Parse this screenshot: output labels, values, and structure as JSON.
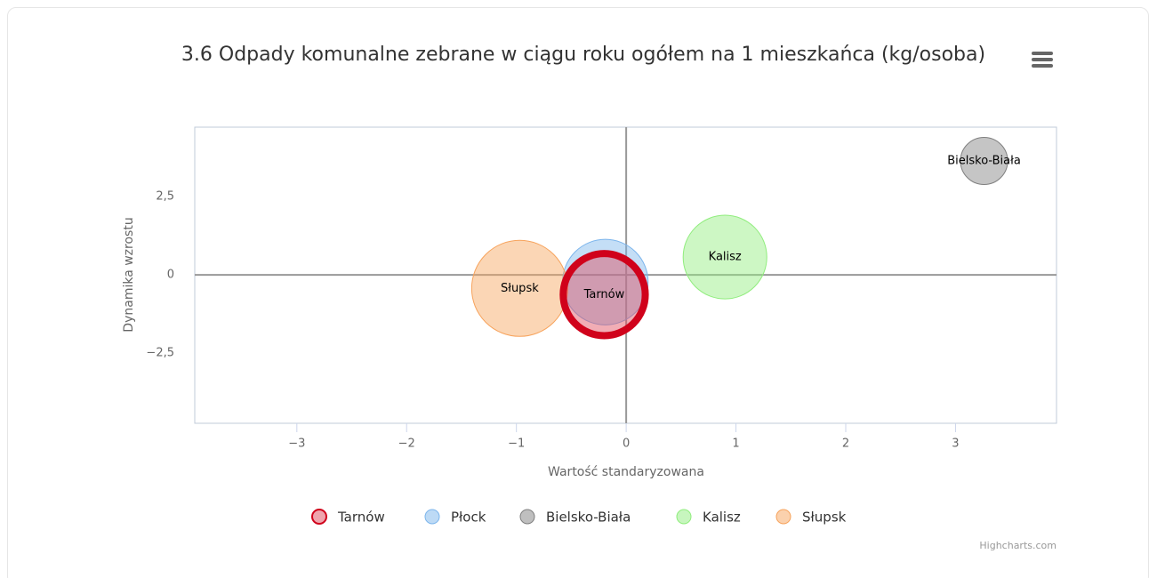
{
  "chart_data": {
    "type": "bubble",
    "title": "3.6 Odpady komunalne zebrane w ciągu roku ogółem na 1 mieszkańca (kg/osoba)",
    "x_label": "Wartość standaryzowana",
    "y_label": "Dynamika wzrostu",
    "credits": "Highcharts.com",
    "xlim": [
      -3.93,
      3.92
    ],
    "ylim": [
      -4.74,
      4.72
    ],
    "xticks": [
      {
        "value": -3,
        "label": "−3"
      },
      {
        "value": -2,
        "label": "−2"
      },
      {
        "value": -1,
        "label": "−1"
      },
      0,
      1,
      2,
      3
    ],
    "yticks": [
      {
        "value": -2.5,
        "label": "−2,5"
      },
      0,
      {
        "value": 2.5,
        "label": "2,5"
      }
    ],
    "series": [
      {
        "name": "Tarnów",
        "color": "#e0495c",
        "selected": true,
        "x": [
          -0.2
        ],
        "y": [
          -0.63
        ],
        "z": [
          25
        ]
      },
      {
        "name": "Płock",
        "color": "#7cb5ec",
        "data_label": false,
        "x": [
          -0.19
        ],
        "y": [
          -0.23
        ],
        "z": [
          23
        ]
      },
      {
        "name": "Bielsko-Biała",
        "color": "#7f7f7f",
        "x": [
          3.26
        ],
        "y": [
          3.64
        ],
        "z": [
          7
        ]
      },
      {
        "name": "Kalisz",
        "color": "#90ed7d",
        "x": [
          0.9
        ],
        "y": [
          0.57
        ],
        "z": [
          22
        ]
      },
      {
        "name": "Słupsk",
        "color": "#f7a35c",
        "x": [
          -0.97
        ],
        "y": [
          -0.43
        ],
        "z": [
          29
        ]
      }
    ]
  }
}
